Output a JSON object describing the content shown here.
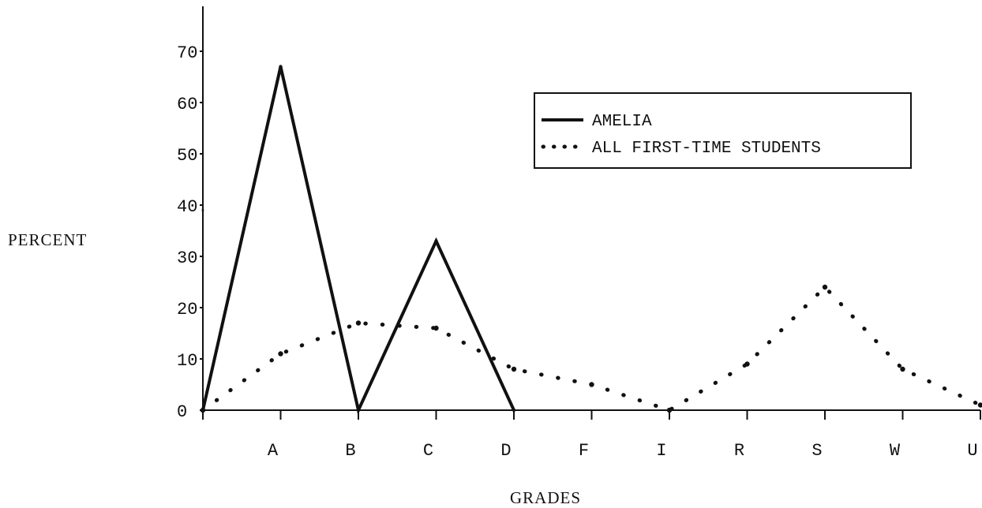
{
  "chart_data": {
    "type": "line",
    "title": "",
    "xlabel": "GRADES",
    "ylabel": "PERCENT",
    "x": [
      "",
      "A",
      "B",
      "C",
      "D",
      "F",
      "I",
      "R",
      "S",
      "W",
      "U"
    ],
    "yticks": [
      0,
      10,
      20,
      30,
      40,
      50,
      60,
      70
    ],
    "ytick_labels": [
      "0",
      "10",
      "20",
      "30",
      "40.",
      "50",
      "60",
      "70"
    ],
    "ylim": [
      0,
      78
    ],
    "grid": false,
    "legend_position": "top-right",
    "series": [
      {
        "name": "AMELIA",
        "style": "solid",
        "color": "#111111",
        "points": [
          {
            "x": "",
            "y": 0
          },
          {
            "x": "A",
            "y": 67
          },
          {
            "x": "B",
            "y": 0
          },
          {
            "x": "C",
            "y": 33
          },
          {
            "x": "D",
            "y": 0
          }
        ]
      },
      {
        "name": "ALL FIRST-TIME STUDENTS",
        "style": "dotted",
        "color": "#111111",
        "points": [
          {
            "x": "",
            "y": 0
          },
          {
            "x": "A",
            "y": 11
          },
          {
            "x": "B",
            "y": 17
          },
          {
            "x": "C",
            "y": 16
          },
          {
            "x": "D",
            "y": 8
          },
          {
            "x": "F",
            "y": 5
          },
          {
            "x": "I",
            "y": 0
          },
          {
            "x": "R",
            "y": 9
          },
          {
            "x": "S",
            "y": 24
          },
          {
            "x": "W",
            "y": 8
          },
          {
            "x": "U",
            "y": 1
          }
        ]
      }
    ]
  }
}
